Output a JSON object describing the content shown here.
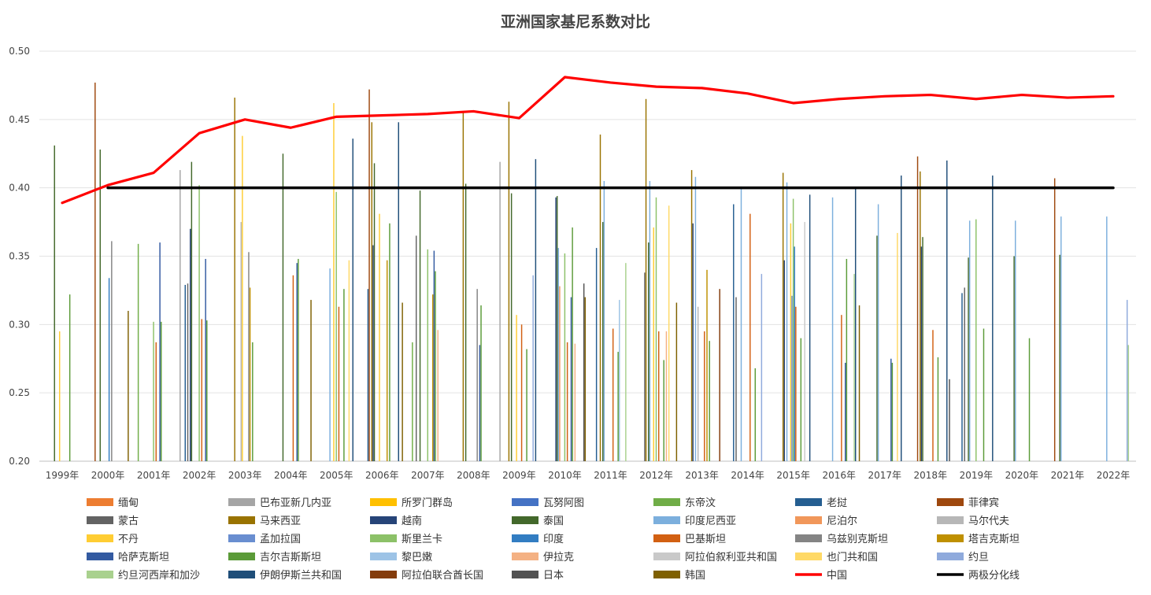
{
  "chart_data": {
    "type": "bar",
    "title": "亚洲国家基尼系数对比",
    "xlabel": "",
    "ylabel": "",
    "ylim": [
      0.2,
      0.5
    ],
    "yticks": [
      "0.20",
      "0.25",
      "0.30",
      "0.35",
      "0.40",
      "0.45",
      "0.50"
    ],
    "grid": true,
    "legend_position": "bottom",
    "categories": [
      "1999年",
      "2000年",
      "2001年",
      "2002年",
      "2003年",
      "2004年",
      "2005年",
      "2006年",
      "2007年",
      "2008年",
      "2009年",
      "2010年",
      "2011年",
      "2012年",
      "2013年",
      "2014年",
      "2015年",
      "2016年",
      "2017年",
      "2018年",
      "2019年",
      "2020年",
      "2021年",
      "2022年"
    ],
    "series": [
      {
        "name": "缅甸",
        "color": "#ED7D31",
        "values": [
          null,
          null,
          null,
          null,
          null,
          null,
          null,
          null,
          null,
          null,
          null,
          null,
          null,
          null,
          null,
          null,
          null,
          null,
          null,
          null,
          null,
          null,
          null,
          null
        ]
      },
      {
        "name": "巴布亚新几内亚",
        "color": "#A5A5A5",
        "values": [
          null,
          null,
          null,
          0.413,
          null,
          null,
          null,
          null,
          null,
          null,
          0.419,
          null,
          null,
          null,
          null,
          null,
          null,
          null,
          null,
          null,
          null,
          null,
          null,
          null
        ]
      },
      {
        "name": "所罗门群岛",
        "color": "#FFC000",
        "values": [
          null,
          null,
          null,
          null,
          null,
          null,
          null,
          null,
          null,
          null,
          null,
          null,
          null,
          null,
          null,
          null,
          null,
          null,
          null,
          null,
          null,
          null,
          null,
          null
        ]
      },
      {
        "name": "瓦努阿图",
        "color": "#4472C4",
        "values": [
          null,
          null,
          null,
          null,
          null,
          null,
          null,
          null,
          null,
          null,
          null,
          null,
          null,
          null,
          null,
          null,
          null,
          null,
          null,
          null,
          null,
          null,
          null,
          null
        ]
      },
      {
        "name": "东帝汶",
        "color": "#70AD47",
        "values": [
          null,
          null,
          0.359,
          null,
          null,
          null,
          null,
          null,
          0.287,
          null,
          null,
          null,
          null,
          null,
          null,
          null,
          null,
          null,
          null,
          null,
          null,
          null,
          null,
          null
        ]
      },
      {
        "name": "老挝",
        "color": "#255E91",
        "values": [
          null,
          null,
          null,
          0.329,
          null,
          null,
          null,
          0.326,
          null,
          null,
          null,
          null,
          0.356,
          null,
          null,
          0.388,
          null,
          null,
          null,
          null,
          0.323,
          null,
          null,
          null
        ]
      },
      {
        "name": "菲律宾",
        "color": "#9E480E",
        "values": [
          null,
          0.477,
          null,
          null,
          null,
          null,
          null,
          0.472,
          null,
          null,
          null,
          null,
          null,
          null,
          null,
          null,
          null,
          null,
          null,
          0.423,
          null,
          null,
          0.407,
          null
        ]
      },
      {
        "name": "蒙古",
        "color": "#636363",
        "values": [
          null,
          null,
          null,
          0.33,
          null,
          null,
          null,
          null,
          0.365,
          null,
          null,
          null,
          null,
          0.338,
          null,
          0.32,
          null,
          null,
          null,
          null,
          0.327,
          null,
          null,
          null
        ]
      },
      {
        "name": "马来西亚",
        "color": "#997300",
        "values": [
          null,
          null,
          null,
          null,
          0.466,
          null,
          null,
          0.448,
          null,
          0.456,
          0.463,
          null,
          0.439,
          0.465,
          0.413,
          null,
          0.411,
          null,
          null,
          0.412,
          null,
          null,
          null,
          null
        ]
      },
      {
        "name": "越南",
        "color": "#264478",
        "values": [
          null,
          null,
          null,
          0.37,
          null,
          null,
          null,
          0.358,
          null,
          null,
          null,
          0.393,
          null,
          null,
          0.374,
          null,
          0.347,
          null,
          null,
          0.357,
          null,
          null,
          null,
          null
        ]
      },
      {
        "name": "泰国",
        "color": "#43682B",
        "values": [
          0.431,
          0.428,
          null,
          0.419,
          null,
          0.425,
          null,
          0.418,
          0.398,
          0.403,
          0.396,
          0.394,
          0.375,
          0.36,
          null,
          null,
          null,
          null,
          0.365,
          0.364,
          0.349,
          0.35,
          0.351,
          null
        ]
      },
      {
        "name": "印度尼西亚",
        "color": "#7CAFDD",
        "values": [
          null,
          null,
          null,
          null,
          null,
          null,
          0.341,
          null,
          null,
          null,
          null,
          0.356,
          0.405,
          0.405,
          0.408,
          0.401,
          0.404,
          0.393,
          0.388,
          null,
          0.376,
          0.376,
          0.379,
          0.379
        ]
      },
      {
        "name": "尼泊尔",
        "color": "#F1975A",
        "values": [
          null,
          null,
          null,
          null,
          null,
          null,
          null,
          null,
          null,
          null,
          null,
          0.328,
          null,
          null,
          null,
          null,
          null,
          null,
          null,
          null,
          null,
          null,
          null,
          null
        ]
      },
      {
        "name": "马尔代夫",
        "color": "#B7B7B7",
        "values": [
          null,
          null,
          null,
          null,
          0.375,
          null,
          null,
          null,
          null,
          null,
          null,
          null,
          null,
          null,
          0.313,
          null,
          null,
          null,
          null,
          null,
          null,
          null,
          null,
          null
        ]
      },
      {
        "name": "不丹",
        "color": "#FFCD33",
        "values": [
          0.295,
          null,
          null,
          null,
          0.438,
          null,
          0.462,
          0.381,
          null,
          null,
          0.307,
          null,
          null,
          0.371,
          null,
          null,
          0.374,
          null,
          null,
          null,
          null,
          null,
          null,
          null
        ]
      },
      {
        "name": "孟加拉国",
        "color": "#698ED0",
        "values": [
          null,
          null,
          null,
          null,
          null,
          null,
          null,
          null,
          null,
          null,
          null,
          null,
          null,
          null,
          null,
          null,
          0.321,
          null,
          null,
          null,
          null,
          null,
          null,
          null
        ]
      },
      {
        "name": "斯里兰卡",
        "color": "#8CC168",
        "values": [
          null,
          null,
          0.302,
          0.402,
          null,
          null,
          0.397,
          null,
          0.355,
          null,
          null,
          0.352,
          null,
          0.393,
          null,
          null,
          0.392,
          null,
          null,
          null,
          0.377,
          null,
          null,
          null
        ]
      },
      {
        "name": "印度",
        "color": "#327DC2",
        "values": [
          null,
          0.334,
          null,
          null,
          null,
          null,
          null,
          null,
          null,
          null,
          null,
          null,
          null,
          null,
          null,
          null,
          0.357,
          null,
          null,
          null,
          null,
          null,
          null,
          null
        ]
      },
      {
        "name": "巴基斯坦",
        "color": "#D26012",
        "values": [
          null,
          null,
          0.287,
          0.304,
          null,
          0.336,
          0.313,
          null,
          null,
          null,
          0.3,
          0.287,
          0.297,
          0.295,
          0.295,
          0.381,
          0.313,
          0.307,
          null,
          0.296,
          null,
          null,
          null,
          null
        ]
      },
      {
        "name": "乌兹别克斯坦",
        "color": "#848484",
        "values": [
          null,
          0.361,
          null,
          null,
          0.353,
          null,
          null,
          null,
          null,
          0.326,
          null,
          null,
          null,
          null,
          null,
          null,
          null,
          null,
          null,
          null,
          null,
          null,
          null,
          null
        ]
      },
      {
        "name": "塔吉克斯坦",
        "color": "#BF9000",
        "values": [
          null,
          null,
          null,
          null,
          0.327,
          null,
          null,
          0.347,
          0.322,
          null,
          null,
          null,
          null,
          null,
          0.34,
          null,
          null,
          null,
          null,
          null,
          null,
          null,
          null,
          null
        ]
      },
      {
        "name": "哈萨克斯坦",
        "color": "#335AA1",
        "values": [
          null,
          null,
          0.36,
          0.348,
          null,
          0.345,
          null,
          null,
          0.354,
          0.285,
          null,
          0.32,
          null,
          null,
          null,
          null,
          null,
          0.272,
          0.275,
          null,
          null,
          null,
          null,
          null
        ]
      },
      {
        "name": "吉尔吉斯斯坦",
        "color": "#5B9B38",
        "values": [
          0.322,
          null,
          0.302,
          0.303,
          0.287,
          0.348,
          0.326,
          0.374,
          0.339,
          0.314,
          0.282,
          0.371,
          0.28,
          0.274,
          0.288,
          0.268,
          0.29,
          0.348,
          0.272,
          0.276,
          0.297,
          0.29,
          null,
          null
        ]
      },
      {
        "name": "黎巴嫩",
        "color": "#9DC3E6",
        "values": [
          null,
          null,
          null,
          null,
          null,
          null,
          null,
          null,
          null,
          null,
          null,
          null,
          0.318,
          null,
          null,
          null,
          null,
          null,
          null,
          null,
          null,
          null,
          null,
          null
        ]
      },
      {
        "name": "伊拉克",
        "color": "#F4B183",
        "values": [
          null,
          null,
          null,
          null,
          null,
          null,
          null,
          null,
          0.296,
          null,
          null,
          0.286,
          null,
          0.295,
          null,
          null,
          null,
          null,
          null,
          null,
          null,
          null,
          null,
          null
        ]
      },
      {
        "name": "阿拉伯叙利亚共和国",
        "color": "#C9C9C9",
        "values": [
          null,
          null,
          null,
          null,
          null,
          null,
          null,
          null,
          null,
          null,
          null,
          null,
          null,
          null,
          null,
          null,
          0.375,
          null,
          null,
          null,
          null,
          null,
          null,
          null
        ]
      },
      {
        "name": "也门共和国",
        "color": "#FFD966",
        "values": [
          null,
          null,
          null,
          null,
          null,
          null,
          0.347,
          null,
          null,
          null,
          null,
          null,
          null,
          0.387,
          null,
          null,
          null,
          null,
          0.367,
          null,
          null,
          null,
          null,
          null
        ]
      },
      {
        "name": "约旦",
        "color": "#8FAADC",
        "values": [
          null,
          null,
          null,
          null,
          null,
          null,
          null,
          null,
          null,
          null,
          0.336,
          null,
          null,
          null,
          null,
          0.337,
          null,
          null,
          null,
          null,
          null,
          null,
          null,
          0.318
        ]
      },
      {
        "name": "约旦河西岸和加沙",
        "color": "#A9D18E",
        "values": [
          null,
          null,
          null,
          null,
          null,
          null,
          null,
          null,
          null,
          null,
          null,
          null,
          0.345,
          null,
          null,
          null,
          null,
          0.337,
          null,
          null,
          null,
          null,
          null,
          0.285
        ]
      },
      {
        "name": "伊朗伊斯兰共和国",
        "color": "#1F4E79",
        "values": [
          null,
          null,
          null,
          null,
          null,
          null,
          0.436,
          0.448,
          null,
          null,
          0.421,
          null,
          null,
          null,
          null,
          null,
          0.395,
          0.4,
          0.409,
          0.42,
          0.409,
          null,
          null,
          null
        ]
      },
      {
        "name": "阿拉伯联合酋长国",
        "color": "#843C0C",
        "values": [
          null,
          null,
          null,
          null,
          null,
          null,
          null,
          null,
          null,
          null,
          null,
          null,
          null,
          null,
          0.326,
          null,
          null,
          null,
          null,
          null,
          null,
          null,
          null,
          null
        ]
      },
      {
        "name": "日本",
        "color": "#525252",
        "values": [
          null,
          null,
          null,
          null,
          null,
          null,
          null,
          null,
          null,
          null,
          null,
          0.33,
          null,
          null,
          null,
          null,
          null,
          null,
          null,
          0.26,
          null,
          null,
          null,
          null
        ]
      },
      {
        "name": "韩国",
        "color": "#7F6000",
        "values": [
          null,
          0.31,
          null,
          null,
          null,
          0.318,
          null,
          0.316,
          null,
          null,
          null,
          0.32,
          null,
          0.316,
          null,
          null,
          null,
          0.314,
          null,
          null,
          null,
          null,
          null,
          null
        ]
      },
      {
        "name": "中国",
        "color": "#FF0000",
        "type": "line",
        "values": [
          0.389,
          0.402,
          0.411,
          0.44,
          0.45,
          0.444,
          0.452,
          0.453,
          0.454,
          0.456,
          0.451,
          0.481,
          0.477,
          0.474,
          0.473,
          0.469,
          0.462,
          0.465,
          0.467,
          0.468,
          0.465,
          0.468,
          0.466,
          0.467
        ]
      },
      {
        "name": "两极分化线",
        "color": "#000000",
        "type": "line",
        "values": [
          null,
          0.4,
          0.4,
          0.4,
          0.4,
          0.4,
          0.4,
          0.4,
          0.4,
          0.4,
          0.4,
          0.4,
          0.4,
          0.4,
          0.4,
          0.4,
          0.4,
          0.4,
          0.4,
          0.4,
          0.4,
          0.4,
          0.4,
          0.4
        ]
      }
    ]
  }
}
